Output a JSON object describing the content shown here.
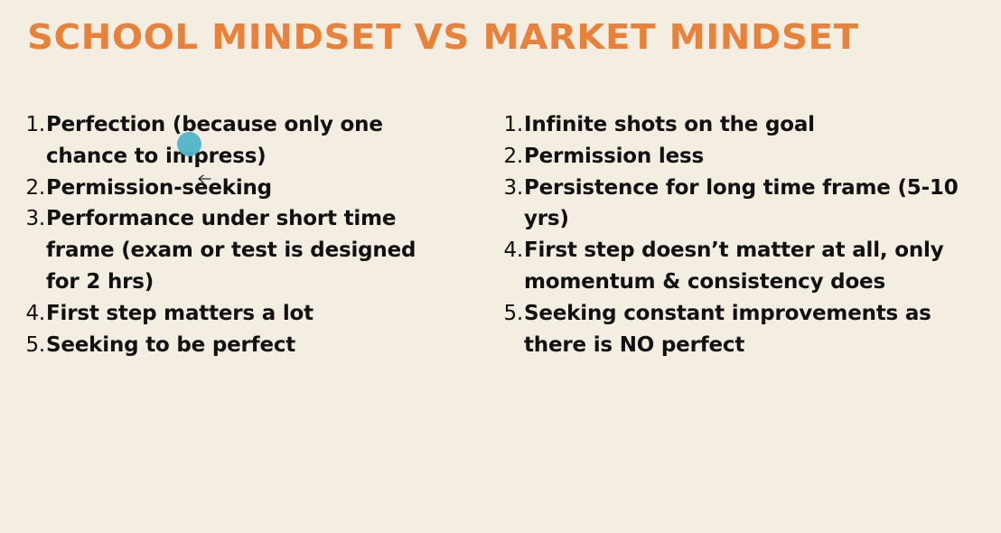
{
  "slide": {
    "title": "SCHOOL MINDSET VS MARKET MINDSET",
    "accent_color": "#e8823a",
    "background_color": "#f3ede2",
    "left_items": [
      {
        "num": "1.",
        "text": "Perfection (because only one chance to impress)"
      },
      {
        "num": "2.",
        "text": "Permission-seeking"
      },
      {
        "num": "3.",
        "text": "Performance under short time frame (exam or test is designed for 2 hrs)"
      },
      {
        "num": "4.",
        "text": "First step matters a lot"
      },
      {
        "num": "5.",
        "text": "Seeking to be perfect"
      }
    ],
    "right_items": [
      {
        "num": "1.",
        "text": "Infinite shots on the goal"
      },
      {
        "num": "2.",
        "text": "Permission less"
      },
      {
        "num": "3.",
        "text": "Persistence for long time frame (5-10 yrs)"
      },
      {
        "num": "4.",
        "text": "First step doesn’t matter at all, only momentum & consistency does"
      },
      {
        "num": "5.",
        "text": "Seeking constant improvements as there is NO perfect"
      }
    ]
  },
  "overlay": {
    "pointer_color": "#4fb5c8",
    "cursor_icon": "arrow-left-cursor-icon"
  }
}
